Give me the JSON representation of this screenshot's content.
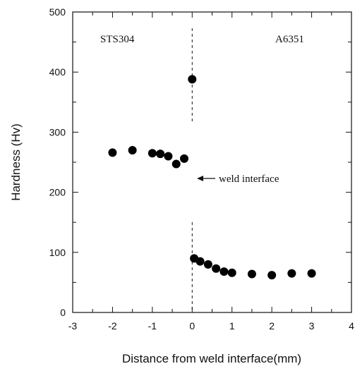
{
  "chart_data": {
    "type": "scatter",
    "title": "",
    "xlabel": "Distance from weld interface(mm)",
    "ylabel": "Hardness (Hv)",
    "xlim": [
      -3,
      4
    ],
    "ylim": [
      0,
      500
    ],
    "x_ticks": [
      -3,
      -2,
      -1,
      0,
      1,
      2,
      3,
      4
    ],
    "y_ticks": [
      0,
      100,
      200,
      300,
      400,
      500
    ],
    "grid": false,
    "series": [
      {
        "x": [
          -2.0,
          -1.5,
          -1.0,
          -0.8,
          -0.6,
          -0.4,
          -0.2,
          0.0,
          0.05,
          0.2,
          0.4,
          0.6,
          0.8,
          1.0,
          1.5,
          2.0,
          2.5,
          3.0
        ],
        "y": [
          266,
          270,
          265,
          264,
          260,
          247,
          256,
          388,
          90,
          85,
          80,
          73,
          68,
          66,
          64,
          62,
          65,
          65
        ]
      }
    ],
    "annotations": {
      "left_region": "STS304",
      "right_region": "A6351",
      "interface_label": "weld interface"
    },
    "marker_color": "#000000"
  }
}
